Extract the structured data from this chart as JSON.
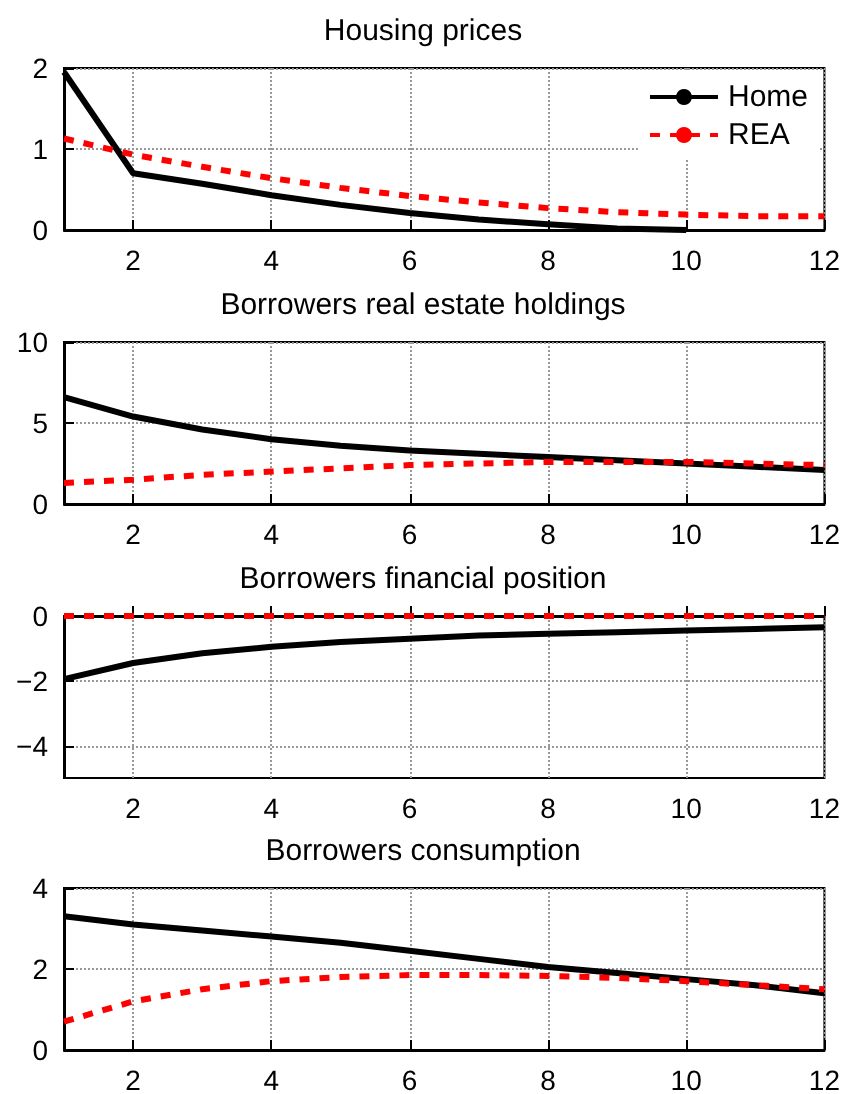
{
  "chart_data": [
    {
      "type": "line",
      "title": "Housing prices",
      "x": [
        1,
        2,
        3,
        4,
        5,
        6,
        7,
        8,
        9,
        10,
        11,
        12
      ],
      "xlim": [
        1,
        12
      ],
      "xticks": [
        2,
        4,
        6,
        8,
        10,
        12
      ],
      "ylim": [
        0,
        2
      ],
      "yticks": [
        0,
        1,
        2
      ],
      "grid": true,
      "legend": "top right",
      "series": [
        {
          "name": "Home",
          "color": "#000000",
          "line_style": "solid",
          "values": [
            1.95,
            0.7,
            0.57,
            0.43,
            0.31,
            0.21,
            0.13,
            0.07,
            0.02,
            0,
            null,
            null
          ]
        },
        {
          "name": "REA",
          "color": "#ff0000",
          "line_style": "dashed",
          "values": [
            1.13,
            0.93,
            0.78,
            0.64,
            0.52,
            0.42,
            0.34,
            0.27,
            0.22,
            0.19,
            0.17,
            0.17
          ]
        }
      ]
    },
    {
      "type": "line",
      "title": "Borrowers real estate holdings",
      "x": [
        1,
        2,
        3,
        4,
        5,
        6,
        7,
        8,
        9,
        10,
        11,
        12
      ],
      "xlim": [
        1,
        12
      ],
      "xticks": [
        2,
        4,
        6,
        8,
        10,
        12
      ],
      "ylim": [
        0,
        10
      ],
      "yticks": [
        0,
        5,
        10
      ],
      "grid": true,
      "series": [
        {
          "color": "#000000",
          "line_style": "solid",
          "values": [
            6.6,
            5.4,
            4.6,
            4.0,
            3.6,
            3.3,
            3.1,
            2.9,
            2.7,
            2.5,
            2.3,
            2.1
          ]
        },
        {
          "color": "#ff0000",
          "line_style": "dashed",
          "values": [
            1.3,
            1.5,
            1.8,
            2.0,
            2.2,
            2.4,
            2.5,
            2.6,
            2.6,
            2.6,
            2.5,
            2.4
          ]
        }
      ]
    },
    {
      "type": "line",
      "title": "Borrowers financial position",
      "x": [
        1,
        2,
        3,
        4,
        5,
        6,
        7,
        8,
        9,
        10,
        11,
        12
      ],
      "xlim": [
        1,
        12
      ],
      "xticks": [
        2,
        4,
        6,
        8,
        10,
        12
      ],
      "ylim": [
        -5,
        0
      ],
      "yticks": [
        -4,
        -2,
        0
      ],
      "grid": true,
      "series": [
        {
          "color": "#000000",
          "line_style": "solid",
          "values": [
            -1.95,
            -1.45,
            -1.15,
            -0.95,
            -0.8,
            -0.7,
            -0.6,
            -0.55,
            -0.5,
            -0.45,
            -0.4,
            -0.35
          ]
        },
        {
          "color": "#ff0000",
          "line_style": "dashed",
          "values": [
            0,
            0,
            0,
            0,
            0,
            0,
            0,
            0,
            0,
            0,
            0,
            0
          ]
        }
      ]
    },
    {
      "type": "line",
      "title": "Borrowers consumption",
      "x": [
        1,
        2,
        3,
        4,
        5,
        6,
        7,
        8,
        9,
        10,
        11,
        12
      ],
      "xlim": [
        1,
        12
      ],
      "xticks": [
        2,
        4,
        6,
        8,
        10,
        12
      ],
      "ylim": [
        0,
        4
      ],
      "yticks": [
        0,
        2,
        4
      ],
      "grid": true,
      "series": [
        {
          "color": "#000000",
          "line_style": "solid",
          "values": [
            3.3,
            3.1,
            2.95,
            2.8,
            2.65,
            2.45,
            2.25,
            2.05,
            1.9,
            1.75,
            1.6,
            1.4
          ]
        },
        {
          "color": "#ff0000",
          "line_style": "dashed",
          "values": [
            0.7,
            1.2,
            1.5,
            1.7,
            1.8,
            1.85,
            1.85,
            1.83,
            1.78,
            1.7,
            1.6,
            1.5
          ]
        }
      ]
    }
  ]
}
